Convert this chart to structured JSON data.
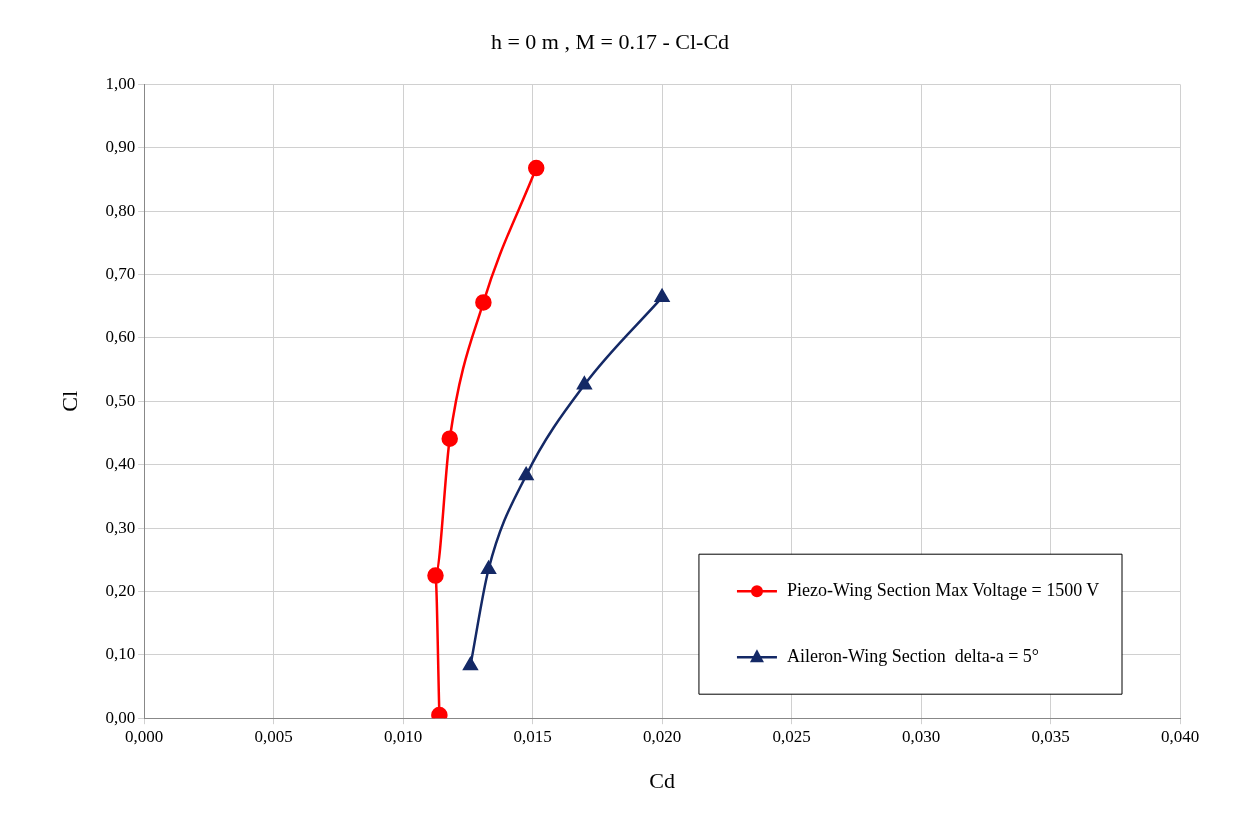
{
  "chart_data": {
    "type": "line",
    "title": "h = 0 m , M = 0.17 - Cl-Cd",
    "xlabel": "Cd",
    "ylabel": "Cl",
    "series": [
      {
        "name": "Piezo-Wing Section Max Voltage = 1500 V",
        "color": "#ff0000",
        "marker": "circle",
        "x": [
          0.0114,
          0.01125,
          0.0118,
          0.0131,
          0.01514
        ],
        "values": [
          0.005,
          0.225,
          0.441,
          0.656,
          0.868
        ]
      },
      {
        "name": "Aileron-Wing Section  delta-a = 5°",
        "color": "#142966",
        "marker": "triangle",
        "x": [
          0.0126,
          0.0133,
          0.01475,
          0.017,
          0.02
        ],
        "values": [
          0.083,
          0.235,
          0.383,
          0.526,
          0.664
        ]
      }
    ],
    "xlim": [
      0,
      0.04
    ],
    "xticks": [
      {
        "value": 0,
        "label": "0,000"
      },
      {
        "value": 0.005,
        "label": "0,005"
      },
      {
        "value": 0.01,
        "label": "0,010"
      },
      {
        "value": 0.015,
        "label": "0,015"
      },
      {
        "value": 0.02,
        "label": "0,020"
      },
      {
        "value": 0.025,
        "label": "0,025"
      },
      {
        "value": 0.03,
        "label": "0,030"
      },
      {
        "value": 0.035,
        "label": "0,035"
      },
      {
        "value": 0.04,
        "label": "0,040"
      }
    ],
    "ylim": [
      0,
      1
    ],
    "yticks": [
      {
        "value": 0,
        "label": "0,00"
      },
      {
        "value": 0.1,
        "label": "0,10"
      },
      {
        "value": 0.2,
        "label": "0,20"
      },
      {
        "value": 0.3,
        "label": "0,30"
      },
      {
        "value": 0.4,
        "label": "0,40"
      },
      {
        "value": 0.5,
        "label": "0,50"
      },
      {
        "value": 0.6,
        "label": "0,60"
      },
      {
        "value": 0.7,
        "label": "0,70"
      },
      {
        "value": 0.8,
        "label": "0,80"
      },
      {
        "value": 0.9,
        "label": "0,90"
      },
      {
        "value": 1,
        "label": "1,00"
      }
    ],
    "grid": true,
    "legend": "bottom right"
  }
}
